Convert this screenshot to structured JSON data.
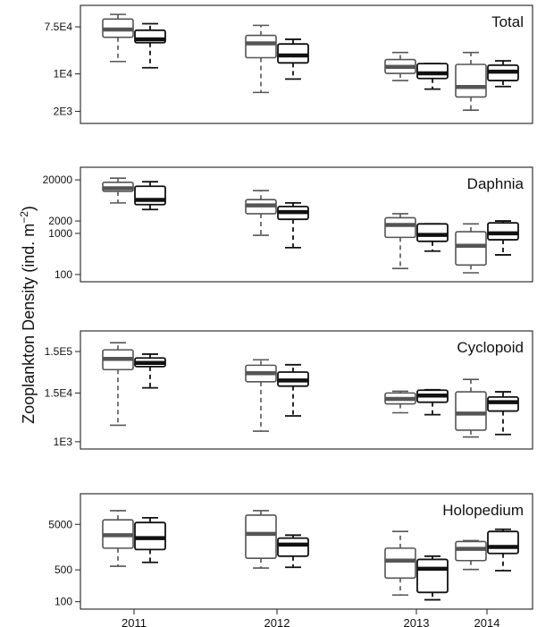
{
  "chart_data": {
    "type": "boxplot",
    "shared_x": {
      "categories": [
        "2011",
        "2012",
        "2013",
        "2014"
      ]
    },
    "ylabel": "Zooplankton Density (ind. m",
    "ylabel_sup": "−2",
    "ylabel_close": ")",
    "yscale": "log",
    "panels": [
      {
        "label": "Total",
        "ylim": [
          1500,
          150000
        ],
        "yticks": [
          {
            "value": 75000,
            "label": "7.5E4"
          },
          {
            "value": 10000,
            "label": "1E4"
          },
          {
            "value": 2000,
            "label": "2E3"
          }
        ],
        "series": [
          {
            "color": "#555555",
            "boxes": [
              {
                "whislo": 17000,
                "q1": 48000,
                "med": 67000,
                "q3": 105000,
                "whishi": 128000
              },
              {
                "whislo": 4500,
                "q1": 20000,
                "med": 37000,
                "q3": 52000,
                "whishi": 80000
              },
              {
                "whislo": 7500,
                "q1": 10200,
                "med": 13500,
                "q3": 18500,
                "whishi": 25000
              },
              {
                "whislo": 2100,
                "q1": 3700,
                "med": 5700,
                "q3": 15000,
                "whishi": 25000
              }
            ]
          },
          {
            "color": "#111111",
            "boxes": [
              {
                "whislo": 13000,
                "q1": 38000,
                "med": 44000,
                "q3": 65000,
                "whishi": 86000
              },
              {
                "whislo": 8000,
                "q1": 16000,
                "med": 22000,
                "q3": 36000,
                "whishi": 44000
              },
              {
                "whislo": 5200,
                "q1": 8200,
                "med": 10200,
                "q3": 15500,
                "whishi": 15500
              },
              {
                "whislo": 5800,
                "q1": 7500,
                "med": 11000,
                "q3": 14500,
                "whishi": 17500
              }
            ]
          }
        ]
      },
      {
        "label": "Daphnia",
        "ylim": [
          90,
          30000
        ],
        "yticks": [
          {
            "value": 20000,
            "label": "20000"
          },
          {
            "value": 2000,
            "label": "2000"
          },
          {
            "value": 1000,
            "label": "1000"
          },
          {
            "value": 100,
            "label": "100"
          }
        ],
        "series": [
          {
            "color": "#555555",
            "boxes": [
              {
                "whislo": 5500,
                "q1": 10500,
                "med": 12500,
                "q3": 17500,
                "whishi": 22000
              },
              {
                "whislo": 900,
                "q1": 3000,
                "med": 4800,
                "q3": 6600,
                "whishi": 11000
              },
              {
                "whislo": 140,
                "q1": 800,
                "med": 1600,
                "q3": 2400,
                "whishi": 3000
              },
              {
                "whislo": 110,
                "q1": 170,
                "med": 500,
                "q3": 1100,
                "whishi": 1700
              }
            ]
          },
          {
            "color": "#111111",
            "boxes": [
              {
                "whislo": 3800,
                "q1": 5000,
                "med": 6500,
                "q3": 14000,
                "whishi": 18000
              },
              {
                "whislo": 450,
                "q1": 2200,
                "med": 3300,
                "q3": 4500,
                "whishi": 5500
              },
              {
                "whislo": 370,
                "q1": 640,
                "med": 920,
                "q3": 1700,
                "whishi": 1700
              },
              {
                "whislo": 300,
                "q1": 700,
                "med": 1000,
                "q3": 1800,
                "whishi": 2000
              }
            ]
          }
        ]
      },
      {
        "label": "Cyclopoid",
        "ylim": [
          900,
          350000
        ],
        "yticks": [
          {
            "value": 150000,
            "label": "1.5E5"
          },
          {
            "value": 15000,
            "label": "1.5E4"
          },
          {
            "value": 1000,
            "label": "1E3"
          }
        ],
        "series": [
          {
            "color": "#555555",
            "boxes": [
              {
                "whislo": 2500,
                "q1": 55000,
                "med": 100000,
                "q3": 165000,
                "whishi": 245000
              },
              {
                "whislo": 1800,
                "q1": 28000,
                "med": 45000,
                "q3": 70000,
                "whishi": 95000
              },
              {
                "whislo": 5000,
                "q1": 8200,
                "med": 10800,
                "q3": 15000,
                "whishi": 16500
              },
              {
                "whislo": 1300,
                "q1": 1900,
                "med": 4800,
                "q3": 16000,
                "whishi": 32000
              }
            ]
          },
          {
            "color": "#111111",
            "boxes": [
              {
                "whislo": 20000,
                "q1": 65000,
                "med": 80000,
                "q3": 105000,
                "whishi": 130000
              },
              {
                "whislo": 4200,
                "q1": 22000,
                "med": 30000,
                "q3": 48000,
                "whishi": 72000
              },
              {
                "whislo": 4500,
                "q1": 9000,
                "med": 13000,
                "q3": 17500,
                "whishi": 18000
              },
              {
                "whislo": 1500,
                "q1": 5500,
                "med": 9000,
                "q3": 12000,
                "whishi": 16000
              }
            ]
          }
        ]
      },
      {
        "label": "Holopedium",
        "ylim": [
          90,
          18000
        ],
        "yticks": [
          {
            "value": 5000,
            "label": "5000"
          },
          {
            "value": 500,
            "label": "500"
          },
          {
            "value": 100,
            "label": "100"
          }
        ],
        "series": [
          {
            "color": "#555555",
            "boxes": [
              {
                "whislo": 600,
                "q1": 1500,
                "med": 2900,
                "q3": 6300,
                "whishi": 10000
              },
              {
                "whislo": 550,
                "q1": 900,
                "med": 3100,
                "q3": 8000,
                "whishi": 10000
              },
              {
                "whislo": 140,
                "q1": 330,
                "med": 800,
                "q3": 1500,
                "whishi": 3500
              },
              {
                "whislo": 510,
                "q1": 800,
                "med": 1450,
                "q3": 2100,
                "whishi": 2200
              }
            ]
          },
          {
            "color": "#111111",
            "boxes": [
              {
                "whislo": 730,
                "q1": 1400,
                "med": 2500,
                "q3": 5500,
                "whishi": 7000
              },
              {
                "whislo": 570,
                "q1": 1000,
                "med": 1800,
                "q3": 2500,
                "whishi": 2900
              },
              {
                "whislo": 110,
                "q1": 160,
                "med": 530,
                "q3": 850,
                "whishi": 1000
              },
              {
                "whislo": 480,
                "q1": 1150,
                "med": 1600,
                "q3": 3500,
                "whishi": 3900
              }
            ]
          }
        ]
      }
    ]
  }
}
